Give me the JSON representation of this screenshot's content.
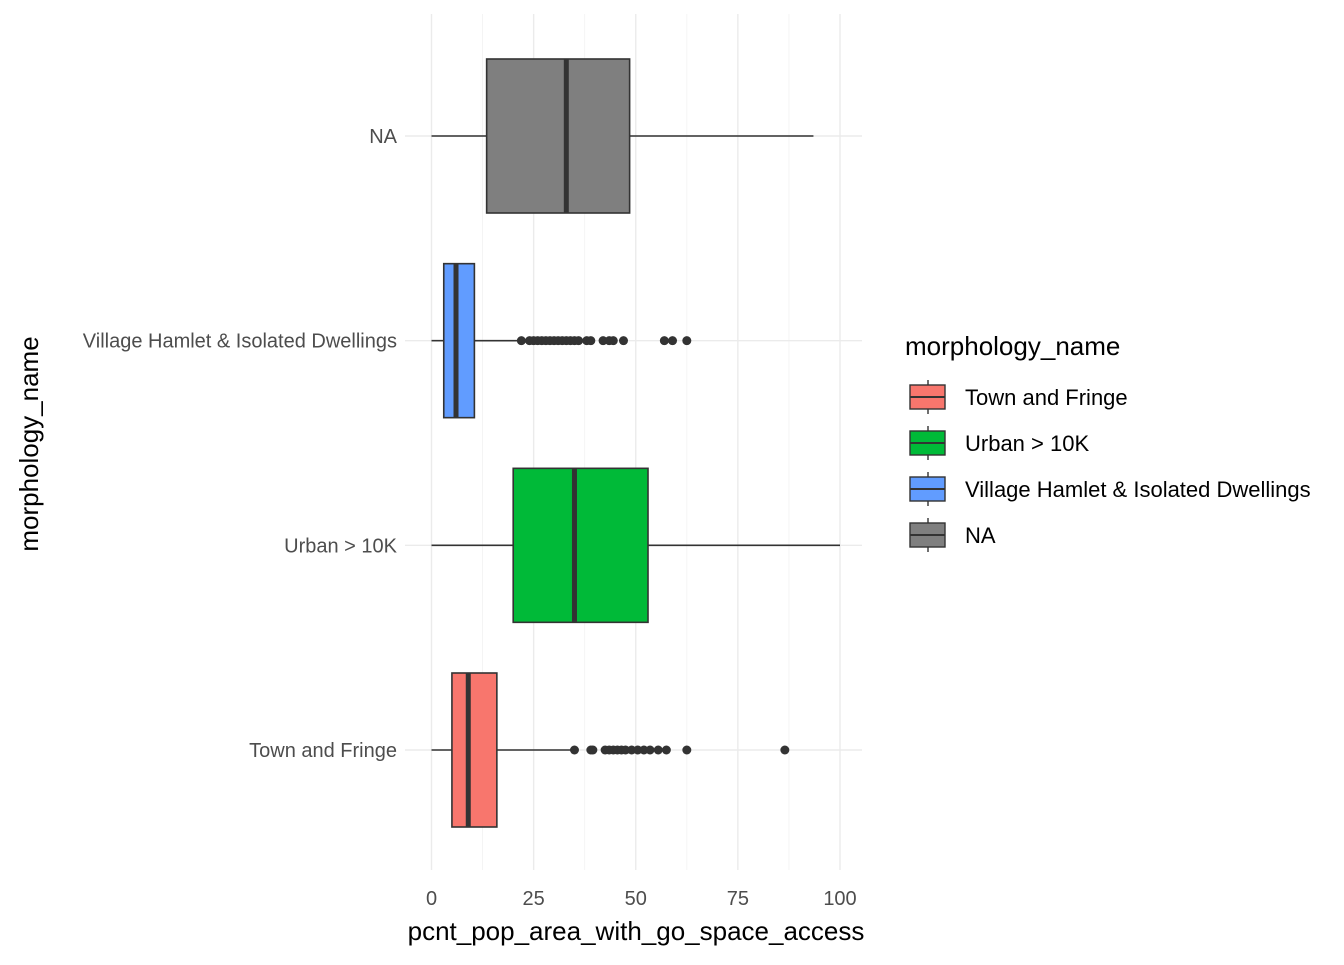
{
  "chart_data": {
    "type": "boxplot",
    "orientation": "horizontal",
    "xlabel": "pcnt_pop_area_with_go_space_access",
    "ylabel": "morphology_name",
    "xlim": [
      0,
      100
    ],
    "x_ticks": [
      0,
      25,
      50,
      75,
      100
    ],
    "grid": true,
    "legend": {
      "title": "morphology_name",
      "placement": "right",
      "entries": [
        {
          "label": "Town and Fringe",
          "color": "#F8766D"
        },
        {
          "label": "Urban > 10K",
          "color": "#00BA38"
        },
        {
          "label": "Village Hamlet & Isolated Dwellings",
          "color": "#619CFF"
        },
        {
          "label": "NA",
          "color": "#7F7F7F"
        }
      ]
    },
    "categories": [
      "Town and Fringe",
      "Urban > 10K",
      "Village Hamlet & Isolated Dwellings",
      "NA"
    ],
    "boxes": [
      {
        "category": "Town and Fringe",
        "color": "#F8766D",
        "whisker_low": 0,
        "q1": 5,
        "median": 9,
        "q3": 16,
        "whisker_high": 34.5,
        "outliers": [
          35,
          39,
          39.5,
          42.5,
          43.5,
          44.5,
          45.5,
          46.5,
          47.5,
          49,
          50.5,
          52,
          53.5,
          55.5,
          57.5,
          62.5,
          86.5
        ]
      },
      {
        "category": "Urban > 10K",
        "color": "#00BA38",
        "whisker_low": 0,
        "q1": 20,
        "median": 35,
        "q3": 53,
        "whisker_high": 100,
        "outliers": []
      },
      {
        "category": "Village Hamlet & Isolated Dwellings",
        "color": "#619CFF",
        "whisker_low": 0,
        "q1": 3,
        "median": 6,
        "q3": 10.5,
        "whisker_high": 21.5,
        "outliers": [
          22,
          24,
          25,
          26,
          27,
          28,
          29,
          30,
          31,
          32,
          33,
          34,
          35,
          36,
          38,
          39,
          42,
          43.5,
          44.5,
          47,
          57,
          59,
          62.5
        ]
      },
      {
        "category": "NA",
        "color": "#7F7F7F",
        "whisker_low": 0,
        "q1": 13.5,
        "median": 33,
        "q3": 48.5,
        "whisker_high": 93.5,
        "outliers": []
      }
    ]
  }
}
